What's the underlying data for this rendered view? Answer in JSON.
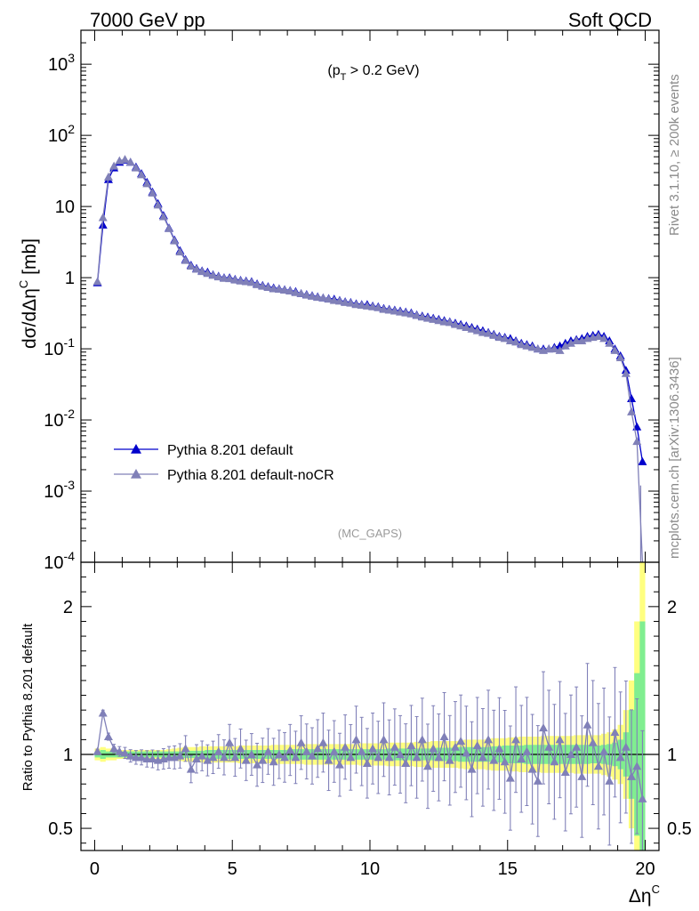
{
  "header": {
    "left": "7000 GeV pp",
    "right": "Soft QCD"
  },
  "side_labels": {
    "rivet": "Rivet 3.1.10, ≥ 200k events",
    "mcplots": "mcplots.cern.ch [arXiv:1306.3436]"
  },
  "chart_data": [
    {
      "type": "line",
      "panel": "main",
      "annotation": "(p_T > 0.2 GeV)",
      "watermark": "(MC_GAPS)",
      "ylabel": "dσ/dΔη^C [mb]",
      "yscale": "log",
      "ylim": [
        0.0001,
        3000
      ],
      "xlim": [
        -0.5,
        20.5
      ],
      "ytick_labels": [
        "10^-4",
        "10^-3",
        "10^-2",
        "10^-1",
        "1",
        "10",
        "10^2",
        "10^3"
      ],
      "legend": {
        "placement": "center-left"
      },
      "x": [
        0.1,
        0.3,
        0.5,
        0.7,
        0.9,
        1.1,
        1.3,
        1.5,
        1.7,
        1.9,
        2.1,
        2.3,
        2.5,
        2.7,
        2.9,
        3.1,
        3.3,
        3.5,
        3.7,
        3.9,
        4.1,
        4.3,
        4.5,
        4.7,
        4.9,
        5.1,
        5.3,
        5.5,
        5.7,
        5.9,
        6.1,
        6.3,
        6.5,
        6.7,
        6.9,
        7.1,
        7.3,
        7.5,
        7.7,
        7.9,
        8.1,
        8.3,
        8.5,
        8.7,
        8.9,
        9.1,
        9.3,
        9.5,
        9.7,
        9.9,
        10.1,
        10.3,
        10.5,
        10.7,
        10.9,
        11.1,
        11.3,
        11.5,
        11.7,
        11.9,
        12.1,
        12.3,
        12.5,
        12.7,
        12.9,
        13.1,
        13.3,
        13.5,
        13.7,
        13.9,
        14.1,
        14.3,
        14.5,
        14.7,
        14.9,
        15.1,
        15.3,
        15.5,
        15.7,
        15.9,
        16.1,
        16.3,
        16.5,
        16.7,
        16.9,
        17.1,
        17.3,
        17.5,
        17.7,
        17.9,
        18.1,
        18.3,
        18.5,
        18.7,
        18.9,
        19.1,
        19.3,
        19.5,
        19.7,
        19.9
      ],
      "series": [
        {
          "name": "Pythia 8.201 default",
          "color": "#0000cc",
          "values": [
            0.85,
            5.5,
            24,
            35,
            42,
            45,
            42,
            36,
            29,
            22,
            16,
            11,
            7.5,
            5.0,
            3.4,
            2.4,
            1.8,
            1.5,
            1.35,
            1.25,
            1.2,
            1.1,
            1.05,
            1.0,
            1.0,
            0.95,
            0.92,
            0.9,
            0.88,
            0.82,
            0.78,
            0.75,
            0.72,
            0.7,
            0.68,
            0.66,
            0.64,
            0.6,
            0.58,
            0.56,
            0.54,
            0.52,
            0.51,
            0.5,
            0.48,
            0.46,
            0.45,
            0.43,
            0.42,
            0.42,
            0.4,
            0.39,
            0.37,
            0.36,
            0.35,
            0.34,
            0.33,
            0.32,
            0.3,
            0.29,
            0.28,
            0.27,
            0.26,
            0.25,
            0.24,
            0.23,
            0.22,
            0.21,
            0.2,
            0.19,
            0.18,
            0.17,
            0.16,
            0.15,
            0.145,
            0.14,
            0.13,
            0.12,
            0.115,
            0.11,
            0.1,
            0.1,
            0.1,
            0.105,
            0.11,
            0.12,
            0.13,
            0.135,
            0.14,
            0.15,
            0.155,
            0.16,
            0.15,
            0.13,
            0.1,
            0.08,
            0.05,
            0.02,
            0.008,
            0.0026
          ]
        },
        {
          "name": "Pythia 8.201 default-noCR",
          "color": "#8080b8",
          "values": [
            0.88,
            7.0,
            26,
            37,
            44,
            46,
            42,
            35,
            28,
            21,
            15.5,
            10.5,
            7.2,
            4.9,
            3.3,
            2.3,
            1.75,
            1.45,
            1.32,
            1.22,
            1.15,
            1.08,
            1.03,
            0.98,
            0.97,
            0.93,
            0.9,
            0.88,
            0.86,
            0.8,
            0.76,
            0.73,
            0.7,
            0.69,
            0.67,
            0.65,
            0.62,
            0.6,
            0.57,
            0.55,
            0.53,
            0.52,
            0.5,
            0.48,
            0.47,
            0.45,
            0.44,
            0.42,
            0.41,
            0.4,
            0.39,
            0.38,
            0.36,
            0.35,
            0.34,
            0.33,
            0.32,
            0.31,
            0.295,
            0.28,
            0.27,
            0.26,
            0.25,
            0.24,
            0.235,
            0.22,
            0.21,
            0.2,
            0.19,
            0.18,
            0.17,
            0.165,
            0.155,
            0.145,
            0.14,
            0.13,
            0.125,
            0.115,
            0.11,
            0.105,
            0.1,
            0.095,
            0.1,
            0.1,
            0.095,
            0.11,
            0.12,
            0.13,
            0.13,
            0.14,
            0.145,
            0.15,
            0.14,
            0.12,
            0.095,
            0.075,
            0.045,
            0.013,
            0.005,
            0.0001
          ]
        }
      ]
    },
    {
      "type": "line",
      "panel": "ratio",
      "xlabel": "Δη^C",
      "ylabel": "Ratio to Pythia 8.201 default",
      "ylim": [
        0.35,
        2.3
      ],
      "xlim": [
        -0.5,
        20.5
      ],
      "xtick_labels": [
        "0",
        "5",
        "10",
        "15",
        "20"
      ],
      "ytick_labels": [
        "0.5",
        "1",
        "2"
      ],
      "x": [
        0.1,
        0.3,
        0.5,
        0.7,
        0.9,
        1.1,
        1.3,
        1.5,
        1.7,
        1.9,
        2.1,
        2.3,
        2.5,
        2.7,
        2.9,
        3.1,
        3.3,
        3.5,
        3.7,
        3.9,
        4.1,
        4.3,
        4.5,
        4.7,
        4.9,
        5.1,
        5.3,
        5.5,
        5.7,
        5.9,
        6.1,
        6.3,
        6.5,
        6.7,
        6.9,
        7.1,
        7.3,
        7.5,
        7.7,
        7.9,
        8.1,
        8.3,
        8.5,
        8.7,
        8.9,
        9.1,
        9.3,
        9.5,
        9.7,
        9.9,
        10.1,
        10.3,
        10.5,
        10.7,
        10.9,
        11.1,
        11.3,
        11.5,
        11.7,
        11.9,
        12.1,
        12.3,
        12.5,
        12.7,
        12.9,
        13.1,
        13.3,
        13.5,
        13.7,
        13.9,
        14.1,
        14.3,
        14.5,
        14.7,
        14.9,
        15.1,
        15.3,
        15.5,
        15.7,
        15.9,
        16.1,
        16.3,
        16.5,
        16.7,
        16.9,
        17.1,
        17.3,
        17.5,
        17.7,
        17.9,
        18.1,
        18.3,
        18.5,
        18.7,
        18.9,
        19.1,
        19.3,
        19.5,
        19.7,
        19.9
      ],
      "band_inner_halfwidth": [
        0.02,
        0.03,
        0.02,
        0.02,
        0.02,
        0.02,
        0.02,
        0.02,
        0.02,
        0.02,
        0.02,
        0.02,
        0.02,
        0.02,
        0.02,
        0.02,
        0.025,
        0.025,
        0.025,
        0.025,
        0.03,
        0.03,
        0.03,
        0.03,
        0.03,
        0.03,
        0.03,
        0.03,
        0.03,
        0.03,
        0.03,
        0.03,
        0.03,
        0.03,
        0.03,
        0.035,
        0.035,
        0.035,
        0.035,
        0.035,
        0.035,
        0.035,
        0.035,
        0.035,
        0.035,
        0.035,
        0.035,
        0.035,
        0.035,
        0.035,
        0.035,
        0.035,
        0.035,
        0.04,
        0.04,
        0.04,
        0.04,
        0.04,
        0.04,
        0.04,
        0.04,
        0.04,
        0.045,
        0.045,
        0.045,
        0.045,
        0.05,
        0.05,
        0.05,
        0.05,
        0.05,
        0.05,
        0.055,
        0.055,
        0.06,
        0.06,
        0.06,
        0.06,
        0.065,
        0.065,
        0.065,
        0.065,
        0.065,
        0.065,
        0.065,
        0.065,
        0.065,
        0.065,
        0.065,
        0.065,
        0.06,
        0.06,
        0.065,
        0.07,
        0.08,
        0.1,
        0.15,
        0.3,
        0.55,
        0.9
      ],
      "band_outer_halfwidth": [
        0.04,
        0.05,
        0.04,
        0.04,
        0.03,
        0.03,
        0.03,
        0.03,
        0.03,
        0.03,
        0.03,
        0.03,
        0.03,
        0.035,
        0.04,
        0.045,
        0.05,
        0.05,
        0.05,
        0.055,
        0.055,
        0.055,
        0.055,
        0.055,
        0.055,
        0.055,
        0.06,
        0.06,
        0.06,
        0.06,
        0.06,
        0.06,
        0.065,
        0.065,
        0.065,
        0.065,
        0.065,
        0.065,
        0.07,
        0.07,
        0.07,
        0.07,
        0.07,
        0.07,
        0.07,
        0.07,
        0.07,
        0.07,
        0.075,
        0.075,
        0.075,
        0.075,
        0.075,
        0.08,
        0.08,
        0.08,
        0.08,
        0.08,
        0.085,
        0.085,
        0.085,
        0.09,
        0.09,
        0.09,
        0.09,
        0.09,
        0.095,
        0.1,
        0.1,
        0.1,
        0.1,
        0.105,
        0.11,
        0.11,
        0.11,
        0.115,
        0.115,
        0.12,
        0.12,
        0.12,
        0.12,
        0.125,
        0.125,
        0.125,
        0.125,
        0.125,
        0.125,
        0.13,
        0.13,
        0.13,
        0.13,
        0.13,
        0.14,
        0.15,
        0.17,
        0.2,
        0.3,
        0.5,
        0.9,
        1.3
      ],
      "series": [
        {
          "name": "Pythia 8.201 default",
          "color": "#000000",
          "values": [
            1,
            1,
            1,
            1,
            1,
            1,
            1,
            1,
            1,
            1,
            1,
            1,
            1,
            1,
            1,
            1,
            1,
            1,
            1,
            1,
            1,
            1,
            1,
            1,
            1,
            1,
            1,
            1,
            1,
            1,
            1,
            1,
            1,
            1,
            1,
            1,
            1,
            1,
            1,
            1,
            1,
            1,
            1,
            1,
            1,
            1,
            1,
            1,
            1,
            1,
            1,
            1,
            1,
            1,
            1,
            1,
            1,
            1,
            1,
            1,
            1,
            1,
            1,
            1,
            1,
            1,
            1,
            1,
            1,
            1,
            1,
            1,
            1,
            1,
            1,
            1,
            1,
            1,
            1,
            1,
            1,
            1,
            1,
            1,
            1,
            1,
            1,
            1,
            1,
            1,
            1,
            1,
            1,
            1,
            1,
            1,
            1,
            1,
            1,
            1
          ]
        },
        {
          "name": "Pythia 8.201 default-noCR",
          "color": "#8080b8",
          "values": [
            1.02,
            1.28,
            1.12,
            1.04,
            1.02,
            1.01,
            0.99,
            0.98,
            0.98,
            0.97,
            0.97,
            0.96,
            0.97,
            0.98,
            0.98,
            0.99,
            1.04,
            0.9,
            0.97,
            0.99,
            0.96,
            0.98,
            1.02,
            0.98,
            1.08,
            0.98,
            1.04,
            0.96,
            1.0,
            0.93,
            0.96,
            1.02,
            0.95,
            1.0,
            0.98,
            1.03,
            0.98,
            1.08,
            1.02,
            0.99,
            1.04,
            1.08,
            0.96,
            1.02,
            0.93,
            1.05,
            0.98,
            1.1,
            1.02,
            0.94,
            1.04,
            0.98,
            1.1,
            0.98,
            1.05,
            1.0,
            0.94,
            1.06,
            0.98,
            1.1,
            0.92,
            1.04,
            0.98,
            1.12,
            0.96,
            1.05,
            1.09,
            1.01,
            0.9,
            1.06,
            0.98,
            1.1,
            0.96,
            1.04,
            0.95,
            0.84,
            1.1,
            0.97,
            1.02,
            0.9,
            0.82,
            1.18,
            1.05,
            0.95,
            1.1,
            0.88,
            1.0,
            1.05,
            0.85,
            1.2,
            1.08,
            0.92,
            1.02,
            0.82,
            1.15,
            0.98,
            1.05,
            0.85,
            0.92,
            0.7
          ]
        }
      ]
    }
  ]
}
